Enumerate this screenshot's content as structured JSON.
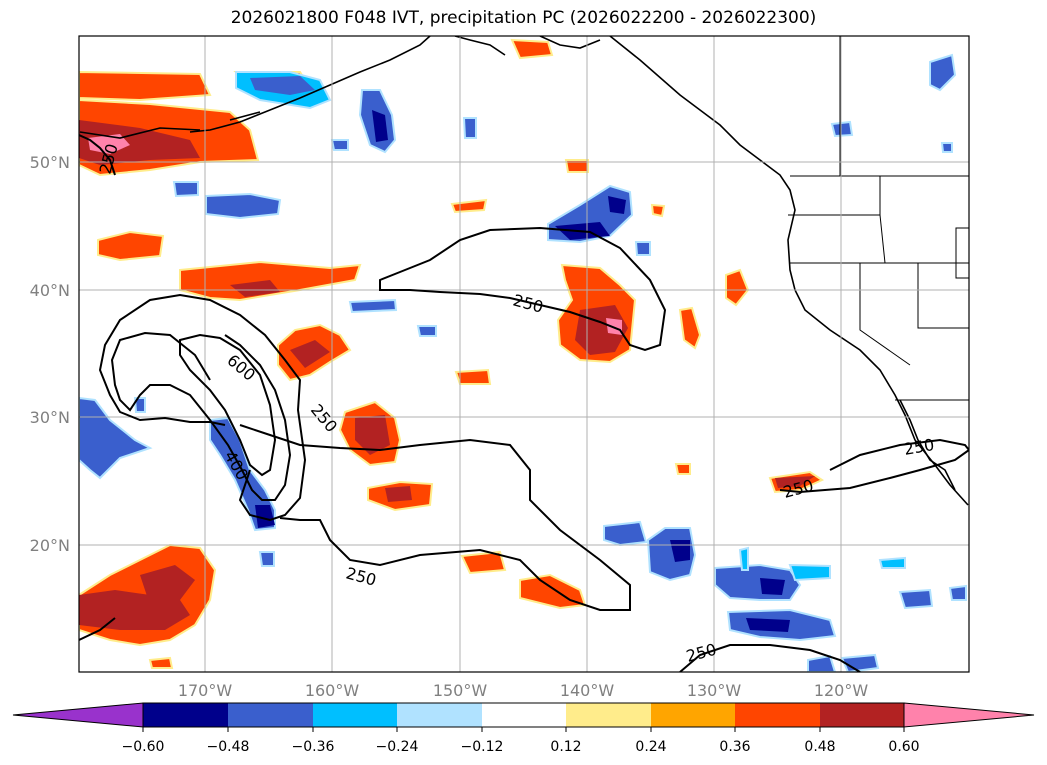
{
  "title": "2026021800 F048 IVT, precipitation PC (2026022200 - 2026022300)",
  "map": {
    "lat_labels": [
      "50°N",
      "40°N",
      "30°N",
      "20°N"
    ],
    "lon_labels": [
      "170°W",
      "160°W",
      "150°W",
      "140°W",
      "130°W",
      "120°W"
    ],
    "contour_labels": [
      "250",
      "250",
      "600",
      "250",
      "400",
      "250",
      "250",
      "250",
      "250"
    ]
  },
  "colorbar": {
    "tick_labels": [
      "−0.60",
      "−0.48",
      "−0.36",
      "−0.24",
      "−0.12",
      "0.12",
      "0.24",
      "0.36",
      "0.48",
      "0.60"
    ],
    "colors": [
      "#9932cc",
      "#00008b",
      "#3a5fcd",
      "#00bfff",
      "#b0e2ff",
      "#ffffff",
      "#ffec8b",
      "#ffa500",
      "#ff4500",
      "#b22222",
      "#ff82ab"
    ]
  },
  "chart_data": {
    "type": "heatmap",
    "title": "2026021800 F048 IVT, precipitation PC (2026022200 - 2026022300)",
    "xlabel": "",
    "ylabel": "",
    "x_ticks": [
      "170°W",
      "160°W",
      "150°W",
      "140°W",
      "130°W",
      "120°W"
    ],
    "y_ticks": [
      "50°N",
      "40°N",
      "30°N",
      "20°N"
    ],
    "xlim": [
      -180,
      -110
    ],
    "ylim": [
      10,
      60
    ],
    "color_levels": [
      -0.6,
      -0.48,
      -0.36,
      -0.24,
      -0.12,
      0.12,
      0.24,
      0.36,
      0.48,
      0.6
    ],
    "contour_levels": [
      250,
      400,
      600
    ],
    "grid": true,
    "colorbar": "bottom, horizontal, extend both"
  }
}
